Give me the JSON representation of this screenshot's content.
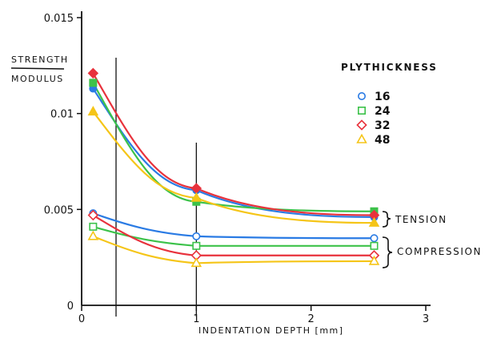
{
  "chart_data": {
    "type": "line",
    "title": "",
    "xlabel": "INDENTATION DEPTH [mm]",
    "ylabel_top": "STRENGTH",
    "ylabel_bottom": "MODULUS",
    "xlim": [
      0,
      3
    ],
    "ylim": [
      0,
      0.015
    ],
    "x_ticks": [
      "0",
      "1",
      "2",
      "3"
    ],
    "y_ticks": [
      "0",
      "0.005",
      "0.01",
      "0.015"
    ],
    "x_tick_values": [
      0,
      1,
      2,
      3
    ],
    "y_tick_values": [
      0,
      0.005,
      0.01,
      0.015
    ],
    "vertical_reference_lines": [
      0.3,
      1.0
    ],
    "legend": {
      "title": "PLYTHICKNESS",
      "placement": "top-right",
      "entries": [
        {
          "label": "16",
          "marker": "circle",
          "color": "#2a7be4"
        },
        {
          "label": "24",
          "marker": "square",
          "color": "#3cc24a"
        },
        {
          "label": "32",
          "marker": "diamond",
          "color": "#e8323c"
        },
        {
          "label": "48",
          "marker": "triangle",
          "color": "#f5c518"
        }
      ]
    },
    "annotations": {
      "tension": "TENSION",
      "compression": "COMPRESSION"
    },
    "series": [
      {
        "name": "16",
        "mode": "tension",
        "marker": "circle",
        "color": "#2a7be4",
        "x": [
          0.1,
          1.0,
          2.55
        ],
        "y": [
          0.0113,
          0.006,
          0.0046
        ]
      },
      {
        "name": "24",
        "mode": "tension",
        "marker": "square",
        "color": "#3cc24a",
        "x": [
          0.1,
          1.0,
          2.55
        ],
        "y": [
          0.0116,
          0.0054,
          0.0049
        ]
      },
      {
        "name": "32",
        "mode": "tension",
        "marker": "diamond",
        "color": "#e8323c",
        "x": [
          0.1,
          1.0,
          2.55
        ],
        "y": [
          0.0121,
          0.0061,
          0.0047
        ]
      },
      {
        "name": "48",
        "mode": "tension",
        "marker": "triangle",
        "color": "#f5c518",
        "x": [
          0.1,
          1.0,
          2.55
        ],
        "y": [
          0.0101,
          0.0056,
          0.0043
        ]
      },
      {
        "name": "16",
        "mode": "compression",
        "marker": "circle",
        "color": "#2a7be4",
        "x": [
          0.1,
          1.0,
          2.55
        ],
        "y": [
          0.0048,
          0.0036,
          0.0035
        ]
      },
      {
        "name": "24",
        "mode": "compression",
        "marker": "square",
        "color": "#3cc24a",
        "x": [
          0.1,
          1.0,
          2.55
        ],
        "y": [
          0.0041,
          0.0031,
          0.0031
        ]
      },
      {
        "name": "32",
        "mode": "compression",
        "marker": "diamond",
        "color": "#e8323c",
        "x": [
          0.1,
          1.0,
          2.55
        ],
        "y": [
          0.0047,
          0.0026,
          0.0026
        ]
      },
      {
        "name": "48",
        "mode": "compression",
        "marker": "triangle",
        "color": "#f5c518",
        "x": [
          0.1,
          1.0,
          2.55
        ],
        "y": [
          0.0036,
          0.0022,
          0.0023
        ]
      }
    ]
  }
}
